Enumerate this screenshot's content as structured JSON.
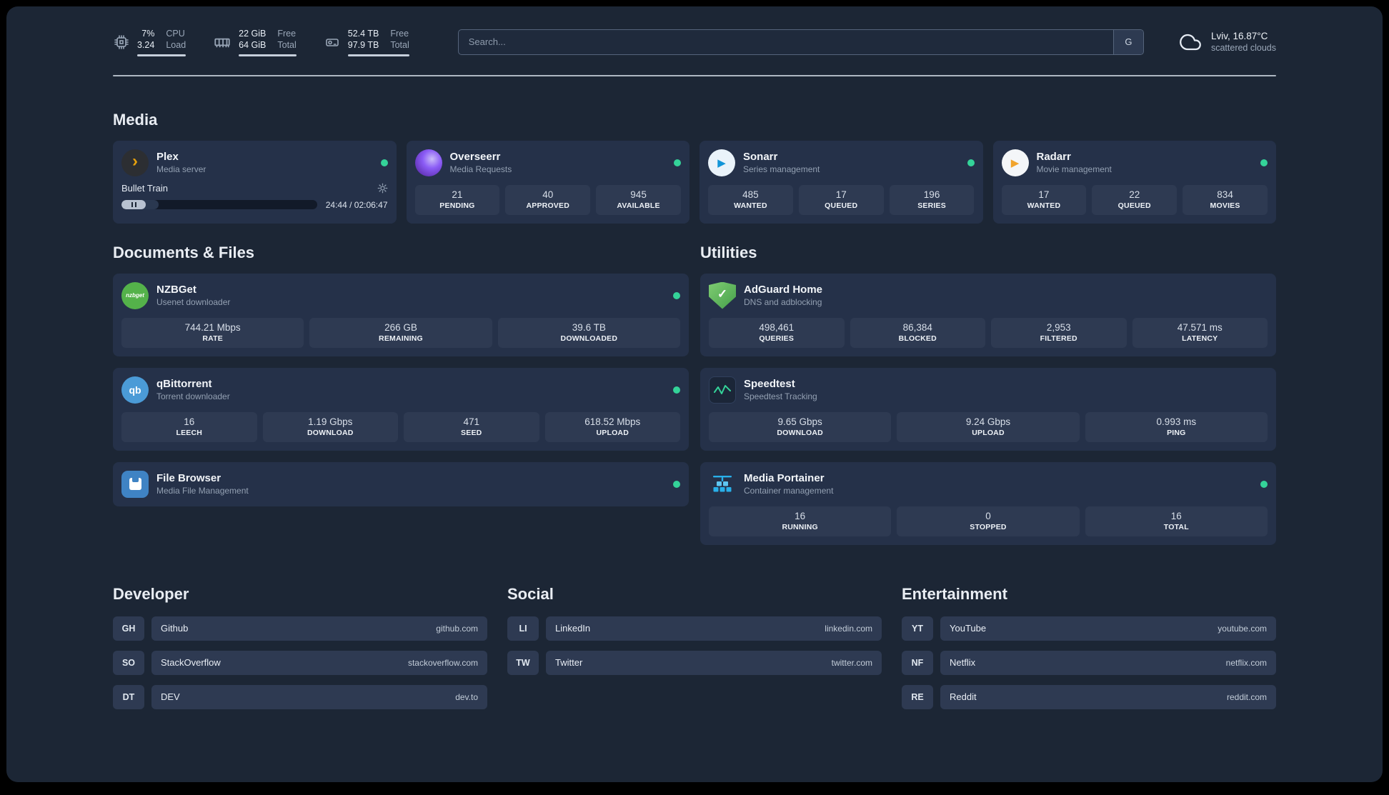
{
  "theme": {
    "background": "#1c2635",
    "card": "#253149",
    "stat_box": "#2e3a52",
    "status_online": "#34d399",
    "accent_plex": "#e5a00d",
    "accent_green": "#45a04b",
    "accent_blue": "#29b0ea"
  },
  "icons": {
    "plex_chevron": "›",
    "play_glyph": "▶",
    "check_glyph": "✓",
    "nzbget_text": "nzbget",
    "qb_text": "qb"
  },
  "topbar": {
    "cpu": {
      "percent": "7%",
      "load": "3.24",
      "label_line1": "CPU",
      "label_line2": "Load"
    },
    "memory": {
      "free": "22 GiB",
      "total": "64 GiB",
      "label_line1": "Free",
      "label_line2": "Total"
    },
    "disk": {
      "free": "52.4 TB",
      "total": "97.9 TB",
      "label_line1": "Free",
      "label_line2": "Total"
    },
    "search": {
      "placeholder": "Search...",
      "provider_button": "G"
    },
    "weather": {
      "location": "Lviv, 16.87°C",
      "condition": "scattered clouds"
    }
  },
  "sections": {
    "media": "Media",
    "documents": "Documents & Files",
    "utilities": "Utilities",
    "developer": "Developer",
    "social": "Social",
    "entertainment": "Entertainment"
  },
  "services": {
    "plex": {
      "name": "Plex",
      "desc": "Media server",
      "now_playing": "Bullet Train",
      "progress_time": "24:44 / 02:06:47",
      "progress_percent": 19
    },
    "overseerr": {
      "name": "Overseerr",
      "desc": "Media Requests",
      "stats": [
        {
          "value": "21",
          "label": "PENDING"
        },
        {
          "value": "40",
          "label": "APPROVED"
        },
        {
          "value": "945",
          "label": "AVAILABLE"
        }
      ]
    },
    "sonarr": {
      "name": "Sonarr",
      "desc": "Series management",
      "stats": [
        {
          "value": "485",
          "label": "WANTED"
        },
        {
          "value": "17",
          "label": "QUEUED"
        },
        {
          "value": "196",
          "label": "SERIES"
        }
      ]
    },
    "radarr": {
      "name": "Radarr",
      "desc": "Movie management",
      "stats": [
        {
          "value": "17",
          "label": "WANTED"
        },
        {
          "value": "22",
          "label": "QUEUED"
        },
        {
          "value": "834",
          "label": "MOVIES"
        }
      ]
    },
    "nzbget": {
      "name": "NZBGet",
      "desc": "Usenet downloader",
      "stats": [
        {
          "value": "744.21 Mbps",
          "label": "RATE"
        },
        {
          "value": "266 GB",
          "label": "REMAINING"
        },
        {
          "value": "39.6 TB",
          "label": "DOWNLOADED"
        }
      ]
    },
    "qbittorrent": {
      "name": "qBittorrent",
      "desc": "Torrent downloader",
      "stats": [
        {
          "value": "16",
          "label": "LEECH"
        },
        {
          "value": "1.19 Gbps",
          "label": "DOWNLOAD"
        },
        {
          "value": "471",
          "label": "SEED"
        },
        {
          "value": "618.52 Mbps",
          "label": "UPLOAD"
        }
      ]
    },
    "filebrowser": {
      "name": "File Browser",
      "desc": "Media File Management"
    },
    "adguard": {
      "name": "AdGuard Home",
      "desc": "DNS and adblocking",
      "stats": [
        {
          "value": "498,461",
          "label": "QUERIES"
        },
        {
          "value": "86,384",
          "label": "BLOCKED"
        },
        {
          "value": "2,953",
          "label": "FILTERED"
        },
        {
          "value": "47.571 ms",
          "label": "LATENCY"
        }
      ]
    },
    "speedtest": {
      "name": "Speedtest",
      "desc": "Speedtest Tracking",
      "stats": [
        {
          "value": "9.65 Gbps",
          "label": "DOWNLOAD"
        },
        {
          "value": "9.24 Gbps",
          "label": "UPLOAD"
        },
        {
          "value": "0.993 ms",
          "label": "PING"
        }
      ]
    },
    "portainer": {
      "name": "Media Portainer",
      "desc": "Container management",
      "stats": [
        {
          "value": "16",
          "label": "RUNNING"
        },
        {
          "value": "0",
          "label": "STOPPED"
        },
        {
          "value": "16",
          "label": "TOTAL"
        }
      ]
    }
  },
  "links": {
    "developer": [
      {
        "abbr": "GH",
        "name": "Github",
        "url": "github.com"
      },
      {
        "abbr": "SO",
        "name": "StackOverflow",
        "url": "stackoverflow.com"
      },
      {
        "abbr": "DT",
        "name": "DEV",
        "url": "dev.to"
      }
    ],
    "social": [
      {
        "abbr": "LI",
        "name": "LinkedIn",
        "url": "linkedin.com"
      },
      {
        "abbr": "TW",
        "name": "Twitter",
        "url": "twitter.com"
      }
    ],
    "entertainment": [
      {
        "abbr": "YT",
        "name": "YouTube",
        "url": "youtube.com"
      },
      {
        "abbr": "NF",
        "name": "Netflix",
        "url": "netflix.com"
      },
      {
        "abbr": "RE",
        "name": "Reddit",
        "url": "reddit.com"
      }
    ]
  }
}
